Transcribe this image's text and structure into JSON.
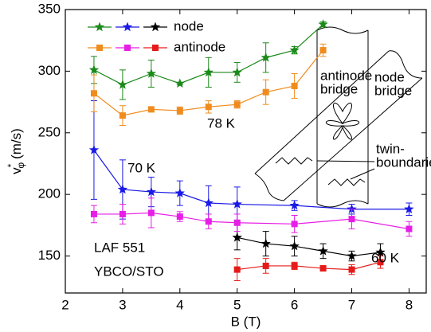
{
  "chart_data": {
    "type": "errorbar-line",
    "x_label": "B (T)",
    "y_label": {
      "base": "v",
      "sup": "*",
      "sub": "φ",
      "unit": "(m/s)"
    },
    "xlim": [
      2,
      8.3
    ],
    "ylim": [
      120,
      350
    ],
    "xticks": [
      2,
      3,
      4,
      5,
      6,
      7,
      8
    ],
    "yticks": [
      150,
      200,
      250,
      300,
      350
    ],
    "groups": [
      {
        "name": "node",
        "marker": "star",
        "series": [
          {
            "color": "#1a8a1a",
            "x": [
              2.5,
              3,
              3.5,
              4,
              4.5,
              5,
              5.5,
              6,
              6.5
            ],
            "values": [
              301,
              289,
              298,
              290,
              299,
              299,
              311,
              317,
              338
            ],
            "errors": [
              11,
              12,
              11,
              1,
              12,
              8,
              12,
              3,
              2
            ]
          },
          {
            "color": "#1a1ae6",
            "x": [
              2.5,
              3,
              3.5,
              4,
              4.5,
              5,
              6,
              7,
              8
            ],
            "values": [
              236,
              204,
              202,
              201,
              193,
              192,
              191,
              188,
              188
            ],
            "errors": [
              40,
              24,
              12,
              10,
              14,
              14,
              4,
              4,
              5
            ]
          },
          {
            "color": "#000000",
            "x": [
              5,
              5.5,
              6,
              6.5,
              7,
              7.5
            ],
            "values": [
              165,
              160,
              158,
              154,
              150,
              153
            ],
            "errors": [
              10,
              10,
              8,
              6,
              4,
              7
            ]
          }
        ]
      },
      {
        "name": "antinode",
        "marker": "square",
        "series": [
          {
            "color": "#f08c1e",
            "x": [
              2.5,
              3,
              3.5,
              4,
              4.5,
              5,
              5.5,
              6,
              6.5
            ],
            "values": [
              282,
              264,
              269,
              268,
              271,
              273,
              283,
              288,
              317
            ],
            "errors": [
              15,
              8,
              2,
              3,
              5,
              3,
              10,
              10,
              5
            ]
          },
          {
            "color": "#e61ee6",
            "x": [
              2.5,
              3,
              3.5,
              4,
              4.5,
              5,
              6,
              7,
              8
            ],
            "values": [
              184,
              184,
              185,
              182,
              178,
              177,
              176,
              180,
              172
            ],
            "errors": [
              7,
              8,
              12,
              4,
              6,
              7,
              7,
              8,
              6
            ]
          },
          {
            "color": "#e61a1a",
            "x": [
              5,
              5.5,
              6,
              6.5,
              7,
              7.5
            ],
            "values": [
              139,
              142,
              142,
              140,
              139,
              145
            ],
            "errors": [
              9,
              6,
              3,
              2,
              4,
              5
            ]
          }
        ]
      }
    ],
    "annotations": [
      "78 K",
      "70 K",
      "60 K",
      "LAF 551",
      "YBCO/STO"
    ],
    "inset": {
      "antinode_bridge": [
        "antinode",
        "bridge"
      ],
      "node_bridge": [
        "node",
        "bridge"
      ],
      "twin_boundaries": [
        "twin-",
        "boundaries"
      ]
    }
  }
}
